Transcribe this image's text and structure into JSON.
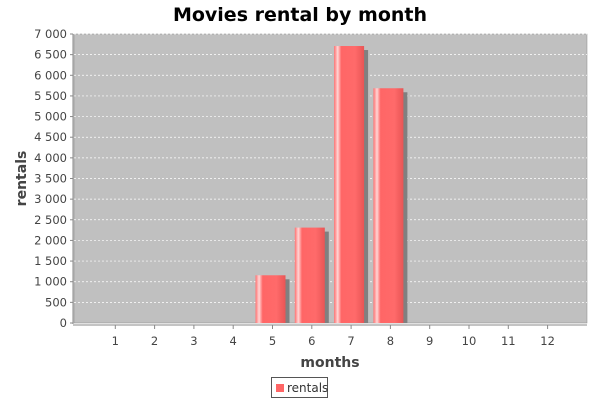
{
  "chart_data": {
    "type": "bar",
    "title": "Movies rental by month",
    "xlabel": "months",
    "ylabel": "rentals",
    "categories": [
      "1",
      "2",
      "3",
      "4",
      "5",
      "6",
      "7",
      "8",
      "9",
      "10",
      "11",
      "12"
    ],
    "series": [
      {
        "name": "rentals",
        "color": "#ff6666",
        "values": [
          0,
          0,
          0,
          0,
          1156,
          2311,
          6709,
          5686,
          0,
          0,
          0,
          0
        ]
      }
    ],
    "ylim": [
      0,
      7000
    ],
    "yticks": [
      0,
      500,
      1000,
      1500,
      2000,
      2500,
      3000,
      3500,
      4000,
      4500,
      5000,
      5500,
      6000,
      6500,
      7000
    ],
    "ytick_labels": [
      "0",
      "500",
      "1 000",
      "1 500",
      "2 000",
      "2 500",
      "3 000",
      "3 500",
      "4 000",
      "4 500",
      "5 000",
      "5 500",
      "6 000",
      "6 500",
      "7 000"
    ],
    "grid": true,
    "legend_position": "bottom",
    "plot_background": "#c0c0c0",
    "grid_color": "#ffffff"
  }
}
